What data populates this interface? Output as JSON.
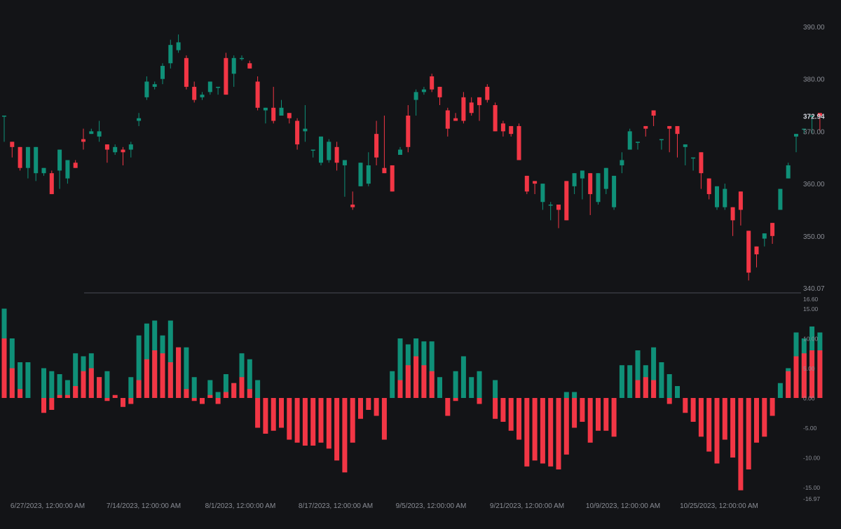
{
  "colors": {
    "background": "#131417",
    "up": "#0f9078",
    "down": "#f23645",
    "axis_text": "#8a8d95",
    "divider": "#4a4d55",
    "last_price_label": "#d1d4dc"
  },
  "chart_data": [
    {
      "type": "candlestick",
      "x_labels": [
        "6/27/2023, 12:00:00 AM",
        "7/14/2023, 12:00:00 AM",
        "8/1/2023, 12:00:00 AM",
        "8/17/2023, 12:00:00 AM",
        "9/5/2023, 12:00:00 AM",
        "9/21/2023, 12:00:00 AM",
        "10/9/2023, 12:00:00 AM",
        "10/25/2023, 12:00:00 AM"
      ],
      "y_ticks": [
        "390.00",
        "380.00",
        "370.00",
        "360.00",
        "350.00",
        "340.07"
      ],
      "ylim": [
        340.07,
        393.5
      ],
      "last_price": "372.94",
      "grid": false,
      "candles": [
        [
          373.0,
          368.0,
          368.0,
          373.0
        ],
        [
          368.0,
          367.5,
          365.0,
          367.0
        ],
        [
          367.0,
          366.5,
          362.5,
          363.0
        ],
        [
          363.0,
          361.5,
          361.0,
          367.0
        ],
        [
          362.0,
          364.0,
          360.5,
          367.0
        ],
        [
          362.0,
          362.5,
          361.5,
          363.0
        ],
        [
          362.0,
          362.5,
          358.0,
          358.0
        ],
        [
          362.5,
          364.0,
          359.0,
          366.5
        ],
        [
          361.0,
          363.5,
          360.0,
          364.5
        ],
        [
          364.0,
          364.5,
          363.5,
          363.0
        ],
        [
          368.5,
          370.5,
          366.5,
          368.0
        ],
        [
          369.5,
          370.5,
          369.5,
          370.0
        ],
        [
          369.0,
          372.0,
          368.0,
          370.0
        ],
        [
          367.5,
          367.0,
          364.0,
          366.5
        ],
        [
          366.0,
          367.5,
          365.5,
          367.0
        ],
        [
          366.5,
          367.0,
          363.5,
          366.0
        ],
        [
          366.5,
          368.0,
          365.0,
          367.5
        ],
        [
          372.0,
          373.5,
          371.0,
          372.5
        ],
        [
          376.5,
          380.5,
          376.0,
          379.5
        ],
        [
          378.5,
          379.5,
          378.0,
          379.0
        ],
        [
          380.0,
          383.0,
          379.0,
          382.5
        ],
        [
          383.0,
          387.5,
          382.0,
          386.5
        ],
        [
          385.5,
          388.5,
          385.0,
          387.0
        ],
        [
          384.0,
          384.5,
          378.0,
          378.5
        ],
        [
          378.5,
          379.5,
          375.5,
          376.0
        ],
        [
          376.5,
          377.5,
          376.0,
          377.0
        ],
        [
          377.5,
          378.5,
          377.0,
          379.5
        ],
        [
          378.5,
          378.0,
          377.0,
          378.5
        ],
        [
          384.0,
          385.0,
          377.5,
          377.0
        ],
        [
          381.0,
          384.5,
          378.5,
          384.0
        ],
        [
          384.0,
          384.5,
          383.5,
          384.0
        ],
        [
          383.0,
          383.5,
          382.5,
          382.0
        ],
        [
          379.5,
          380.5,
          374.0,
          374.5
        ],
        [
          374.0,
          374.0,
          371.5,
          374.5
        ],
        [
          374.5,
          378.5,
          371.5,
          372.0
        ],
        [
          373.0,
          376.0,
          373.5,
          374.5
        ],
        [
          373.5,
          372.5,
          371.5,
          372.5
        ],
        [
          372.0,
          372.5,
          366.5,
          367.5
        ],
        [
          370.0,
          375.0,
          368.0,
          370.5
        ],
        [
          366.5,
          366.5,
          365.0,
          366.5
        ],
        [
          364.0,
          368.5,
          363.5,
          369.0
        ],
        [
          364.5,
          368.5,
          364.0,
          368.0
        ],
        [
          367.0,
          368.0,
          362.5,
          364.0
        ],
        [
          363.5,
          360.5,
          357.5,
          364.5
        ],
        [
          356.0,
          358.5,
          355.0,
          355.5
        ],
        [
          359.5,
          364.0,
          359.5,
          364.0
        ],
        [
          360.0,
          366.0,
          359.5,
          363.5
        ],
        [
          369.5,
          372.0,
          363.5,
          365.0
        ],
        [
          363.0,
          373.0,
          362.0,
          362.0
        ],
        [
          363.5,
          361.0,
          359.0,
          358.5
        ],
        [
          365.5,
          367.0,
          365.5,
          366.5
        ],
        [
          373.0,
          375.0,
          366.0,
          367.0
        ],
        [
          376.0,
          378.0,
          373.0,
          377.5
        ],
        [
          377.5,
          378.5,
          377.0,
          378.0
        ],
        [
          380.5,
          381.0,
          377.5,
          378.0
        ],
        [
          378.5,
          378.5,
          375.0,
          376.5
        ],
        [
          374.0,
          374.5,
          369.0,
          370.5
        ],
        [
          372.5,
          373.5,
          372.0,
          372.0
        ],
        [
          376.5,
          377.5,
          371.5,
          372.0
        ],
        [
          375.5,
          376.5,
          373.0,
          373.5
        ],
        [
          376.5,
          376.0,
          372.0,
          375.0
        ],
        [
          378.5,
          379.0,
          375.5,
          376.0
        ],
        [
          375.0,
          375.5,
          370.0,
          370.0
        ],
        [
          371.5,
          372.0,
          369.0,
          370.0
        ],
        [
          371.0,
          370.5,
          369.0,
          369.5
        ],
        [
          371.0,
          371.5,
          364.5,
          364.5
        ],
        [
          361.5,
          361.5,
          358.0,
          358.5
        ],
        [
          360.5,
          358.5,
          358.0,
          360.0
        ],
        [
          356.5,
          357.5,
          355.0,
          360.0
        ],
        [
          356.0,
          356.5,
          353.0,
          356.0
        ],
        [
          356.0,
          353.0,
          351.5,
          355.0
        ],
        [
          360.5,
          359.0,
          353.0,
          353.0
        ],
        [
          359.5,
          361.0,
          358.0,
          362.0
        ],
        [
          361.0,
          359.5,
          357.0,
          362.5
        ],
        [
          362.0,
          357.0,
          354.0,
          358.0
        ],
        [
          356.5,
          362.0,
          356.0,
          362.0
        ],
        [
          359.0,
          361.0,
          358.0,
          363.0
        ],
        [
          355.5,
          355.0,
          359.0,
          361.5
        ],
        [
          363.5,
          362.0,
          366.0,
          364.5
        ],
        [
          366.5,
          370.5,
          366.5,
          370.0
        ],
        [
          368.0,
          367.5,
          366.5,
          368.0
        ],
        [
          371.0,
          370.0,
          369.0,
          370.5
        ],
        [
          374.0,
          372.5,
          371.0,
          373.0
        ],
        [
          368.5,
          367.5,
          366.5,
          368.5
        ],
        [
          371.0,
          368.5,
          366.0,
          370.5
        ],
        [
          371.0,
          370.5,
          365.0,
          369.5
        ],
        [
          367.0,
          366.0,
          363.5,
          367.5
        ],
        [
          365.0,
          364.5,
          362.5,
          365.0
        ],
        [
          366.0,
          364.5,
          359.0,
          362.0
        ],
        [
          361.0,
          360.0,
          357.0,
          358.0
        ],
        [
          355.5,
          359.5,
          355.0,
          359.5
        ],
        [
          355.5,
          360.0,
          355.0,
          359.0
        ],
        [
          355.5,
          352.0,
          350.0,
          353.0
        ],
        [
          358.5,
          358.0,
          352.0,
          355.0
        ],
        [
          351.0,
          348.0,
          341.5,
          343.0
        ],
        [
          348.0,
          347.5,
          344.0,
          346.5
        ],
        [
          349.5,
          348.5,
          348.0,
          350.5
        ],
        [
          352.5,
          350.5,
          348.5,
          350.0
        ],
        [
          355.0,
          357.0,
          355.0,
          359.0
        ],
        [
          361.0,
          364.0,
          362.0,
          363.5
        ],
        [
          369.0,
          367.5,
          366.0,
          369.5
        ],
        [
          370.5,
          370.0,
          369.5,
          370.5
        ],
        [
          373.0,
          371.0,
          369.5,
          373.0
        ],
        [
          373.5,
          372.5,
          370.0,
          372.9
        ]
      ]
    },
    {
      "type": "bar",
      "subtype": "stacked-histogram",
      "y_ticks": [
        "16.60",
        "15.00",
        "10.00",
        "5.00",
        "0.00",
        "-5.00",
        "-10.00",
        "-15.00",
        "-16.97"
      ],
      "ylim": [
        -16.97,
        16.6
      ],
      "grid": false,
      "down_values": [
        10,
        5,
        1.5,
        0,
        0,
        -2.5,
        -2,
        0.5,
        0.5,
        2,
        4.5,
        5,
        3.5,
        -0.5,
        0.5,
        -1.5,
        -1,
        3,
        6.5,
        8,
        7.5,
        6,
        8.5,
        1.5,
        -0.5,
        -1,
        0.5,
        -1,
        1,
        2.5,
        3.5,
        1.5,
        -5,
        -6,
        -5.5,
        -5,
        -7,
        -7.5,
        -8,
        -8,
        -7.5,
        -8.5,
        -10.5,
        -12.5,
        -7.5,
        -3.5,
        -2,
        -3,
        -7,
        0,
        3,
        5.5,
        7,
        5.5,
        4.5,
        0,
        -3,
        -0.5,
        0,
        0,
        -1,
        0,
        -3.5,
        -4,
        -5.5,
        -7,
        -11.5,
        -10.5,
        -11,
        -11.5,
        -12,
        -9.5,
        -5,
        -4,
        -7.5,
        -5.5,
        -5.5,
        -6.5,
        0,
        0,
        3,
        3.5,
        3,
        0,
        -1,
        0,
        -2.5,
        -4,
        -6.5,
        -9,
        -11,
        -7,
        -10,
        -15.5,
        -12,
        -7.5,
        -6.5,
        -3,
        0,
        4.5,
        7,
        7.5,
        8,
        8
      ],
      "up_values": [
        15,
        10,
        6,
        6,
        0,
        5,
        4.5,
        4,
        3,
        7.5,
        7,
        7.5,
        3.5,
        4.5,
        0,
        0,
        3.5,
        10.5,
        12.5,
        13,
        10.5,
        13,
        8.5,
        8.5,
        3.5,
        0,
        3,
        1,
        4,
        2.5,
        7.5,
        6.5,
        3,
        0,
        0,
        0,
        0,
        0,
        0,
        0,
        0,
        0,
        0,
        0,
        0,
        0,
        0,
        0,
        0,
        4.5,
        10,
        9,
        10,
        9.5,
        9.5,
        3.5,
        0,
        4.5,
        7,
        3.5,
        4.5,
        0,
        3,
        0,
        0,
        0,
        0,
        0,
        0,
        0,
        0,
        1,
        1,
        0,
        0,
        0,
        0,
        0,
        5.5,
        5.5,
        8,
        5.5,
        8.5,
        6,
        4,
        2,
        0,
        0,
        0,
        0,
        0,
        0,
        0,
        0,
        0,
        0,
        0,
        0,
        2.5,
        5,
        11,
        10,
        12,
        11
      ]
    }
  ]
}
